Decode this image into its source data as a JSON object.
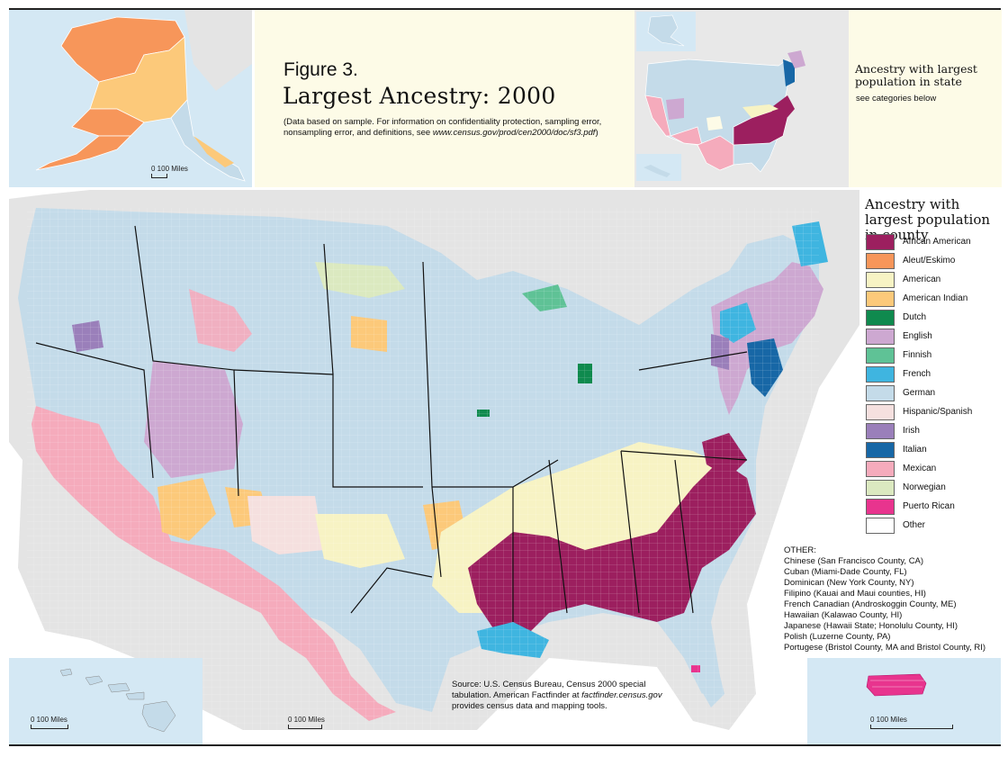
{
  "figure": {
    "label": "Figure 3.",
    "title": "Largest Ancestry: 2000",
    "note_prefix": "(Data based on sample. For information on confidentiality protection, sampling error, nonsampling error, and definitions, see ",
    "note_url": "www.census.gov/prod/cen2000/doc/sf3.pdf",
    "note_suffix": ")"
  },
  "state_legend": {
    "title": "Ancestry with largest population in state",
    "subtitle": "see categories below"
  },
  "county_legend": {
    "title": "Ancestry with largest population in county",
    "items": [
      {
        "label": "African American",
        "color": "#9c1f5f"
      },
      {
        "label": "Aleut/Eskimo",
        "color": "#f7965a"
      },
      {
        "label": "American",
        "color": "#f7f3c4"
      },
      {
        "label": "American Indian",
        "color": "#fcc97a"
      },
      {
        "label": "Dutch",
        "color": "#0f8a4e"
      },
      {
        "label": "English",
        "color": "#cda8d1"
      },
      {
        "label": "Finnish",
        "color": "#5fc296"
      },
      {
        "label": "French",
        "color": "#3fb5e0"
      },
      {
        "label": "German",
        "color": "#c4dbe9"
      },
      {
        "label": "Hispanic/Spanish",
        "color": "#f5e0df"
      },
      {
        "label": "Irish",
        "color": "#9a7fba"
      },
      {
        "label": "Italian",
        "color": "#1767a6"
      },
      {
        "label": "Mexican",
        "color": "#f5abbc"
      },
      {
        "label": "Norwegian",
        "color": "#dbe9c0"
      },
      {
        "label": "Puerto Rican",
        "color": "#e8348e"
      },
      {
        "label": "Other",
        "color": "#ffffff"
      }
    ]
  },
  "other": {
    "heading": "OTHER:",
    "items": [
      "Chinese (San Francisco County, CA)",
      "Cuban (Miami-Dade County, FL)",
      "Dominican (New York County, NY)",
      "Filipino (Kauai and Maui counties, HI)",
      "French Canadian (Androskoggin County, ME)",
      "Hawaiian (Kalawao County, HI)",
      "Japanese (Hawaii State; Honolulu County, HI)",
      "Polish (Luzerne County, PA)",
      "Portugese (Bristol County, MA and Bristol County, RI)"
    ]
  },
  "source": {
    "line1": "Source: U.S. Census Bureau, Census 2000 special tabulation. American Factfinder at ",
    "url": "factfinder.census.gov",
    "line2": " provides census data and mapping tools."
  },
  "scales": {
    "alaska": "0    100 Miles",
    "hawaii": "0        100 Miles",
    "mainland": "0        100 Miles",
    "puerto_rico": "0             100 Miles"
  }
}
